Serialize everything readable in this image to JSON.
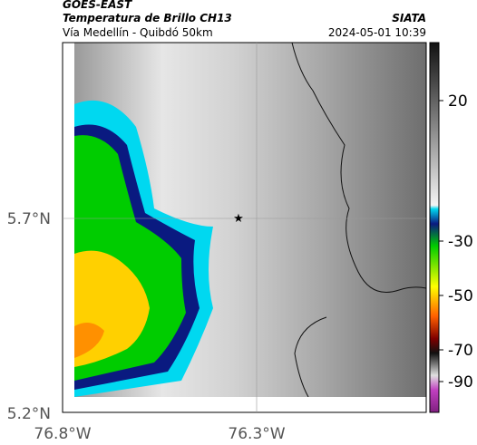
{
  "header": {
    "source": "GOES-EAST",
    "title": "Temperatura de Brillo CH13",
    "subtitle": "Vía Medellín - Quibdó 50km",
    "credit": "SIATA",
    "datetime": "2024-05-01 10:39"
  },
  "axes": {
    "y_ticks": [
      "5.7°N",
      "5.2°N"
    ],
    "x_ticks": [
      "76.8°W",
      "76.3°W"
    ]
  },
  "colorbar": {
    "ticks": [
      "20",
      "-30",
      "-50",
      "-70",
      "-90"
    ]
  }
}
